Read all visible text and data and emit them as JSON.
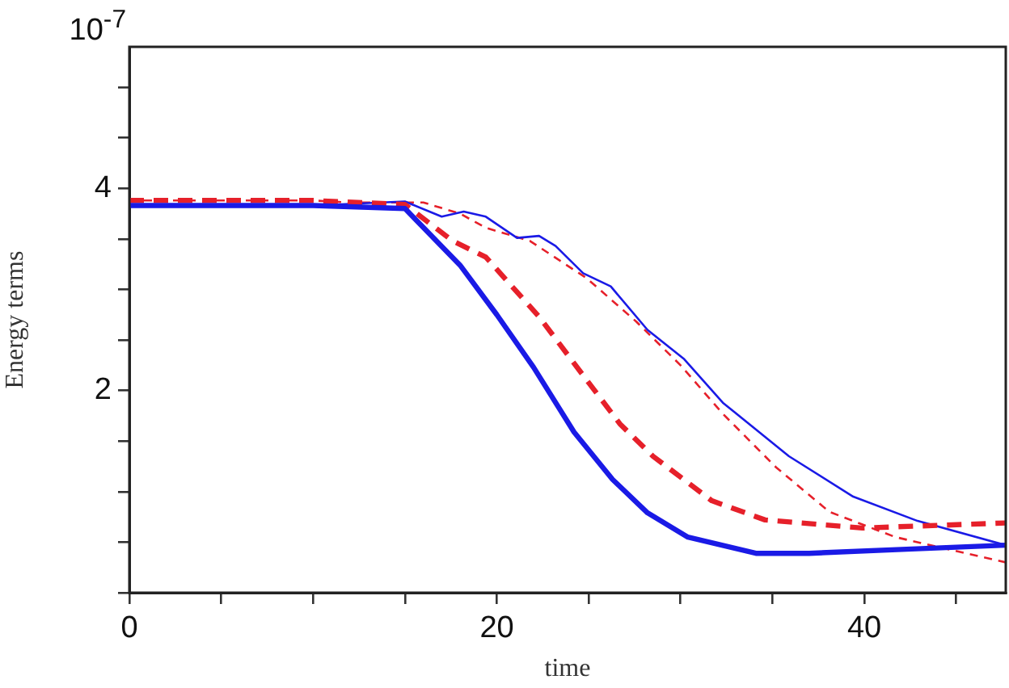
{
  "chart_data": {
    "type": "line",
    "xlabel": "time",
    "ylabel": "Energy terms",
    "annotations": [
      "10$^{-7}$"
    ],
    "xlim": [
      0,
      47.7
    ],
    "ylim": [
      0,
      5.4
    ],
    "xticks": [
      0,
      {
        "value": 5,
        "label": null
      },
      {
        "value": 10,
        "label": null
      },
      {
        "value": 15,
        "label": null
      },
      20,
      {
        "value": 25,
        "label": null
      },
      {
        "value": 30,
        "label": null
      },
      {
        "value": 35,
        "label": null
      },
      40,
      {
        "value": 45,
        "label": null
      }
    ],
    "yticks": [
      {
        "value": 0,
        "label": null
      },
      {
        "value": 0.5,
        "label": null
      },
      {
        "value": 1,
        "label": null
      },
      {
        "value": 1.5,
        "label": null
      },
      2,
      {
        "value": 2.5,
        "label": null
      },
      {
        "value": 3,
        "label": null
      },
      {
        "value": 3.5,
        "label": null
      },
      4,
      {
        "value": 4.5,
        "label": null
      },
      {
        "value": 5,
        "label": null
      }
    ],
    "grid": false,
    "legend": false,
    "marker": "none",
    "series": [
      {
        "color": "#1a1ae6",
        "line_style": "solid",
        "x": [
          0,
          10,
          15,
          18,
          20,
          22,
          24.2,
          26.3,
          28.2,
          30.4,
          34.1,
          37,
          42.3,
          47.7
        ],
        "values": [
          3.83,
          3.83,
          3.8,
          3.24,
          2.75,
          2.23,
          1.59,
          1.12,
          0.79,
          0.55,
          0.39,
          0.39,
          0.43,
          0.47
        ]
      },
      {
        "color": "#e6202a",
        "line_style": "dashed",
        "x": [
          0,
          10,
          15,
          17.6,
          19.4,
          22.3,
          24.7,
          26.7,
          28.5,
          31.7,
          34.6,
          39.9,
          47.7
        ],
        "values": [
          3.88,
          3.88,
          3.84,
          3.48,
          3.32,
          2.73,
          2.15,
          1.67,
          1.35,
          0.91,
          0.72,
          0.64,
          0.69
        ]
      },
      {
        "color": "#1a1ae6",
        "line_style": "solid",
        "x": [
          0,
          10,
          15,
          17,
          18.2,
          19.4,
          21.1,
          22.3,
          23.2,
          24.7,
          26.2,
          28.2,
          30.2,
          32.3,
          35.9,
          39.4,
          42.9,
          47.7
        ],
        "values": [
          3.83,
          3.83,
          3.87,
          3.72,
          3.77,
          3.72,
          3.51,
          3.53,
          3.43,
          3.16,
          3.03,
          2.6,
          2.31,
          1.88,
          1.35,
          0.95,
          0.71,
          0.47
        ]
      },
      {
        "color": "#e6202a",
        "line_style": "dashed",
        "x": [
          0,
          10,
          12,
          16,
          18,
          19.4,
          21.8,
          24.9,
          27.6,
          30,
          32.3,
          35.2,
          38.1,
          41.7,
          47.7
        ],
        "values": [
          3.88,
          3.88,
          3.86,
          3.86,
          3.75,
          3.61,
          3.48,
          3.11,
          2.68,
          2.25,
          1.77,
          1.24,
          0.8,
          0.55,
          0.3
        ]
      }
    ]
  }
}
